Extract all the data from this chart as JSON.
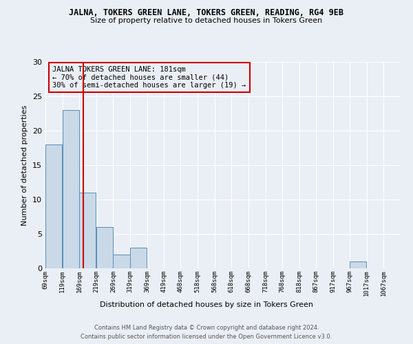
{
  "title": "JALNA, TOKERS GREEN LANE, TOKERS GREEN, READING, RG4 9EB",
  "subtitle": "Size of property relative to detached houses in Tokers Green",
  "xlabel": "Distribution of detached houses by size in Tokers Green",
  "ylabel": "Number of detached properties",
  "bin_edges": [
    69,
    119,
    169,
    219,
    269,
    319,
    369,
    419,
    468,
    518,
    568,
    618,
    668,
    718,
    768,
    818,
    867,
    917,
    967,
    1017,
    1067
  ],
  "bin_labels": [
    "69sqm",
    "119sqm",
    "169sqm",
    "219sqm",
    "269sqm",
    "319sqm",
    "369sqm",
    "419sqm",
    "468sqm",
    "518sqm",
    "568sqm",
    "618sqm",
    "668sqm",
    "718sqm",
    "768sqm",
    "818sqm",
    "867sqm",
    "917sqm",
    "967sqm",
    "1017sqm",
    "1067sqm"
  ],
  "bar_heights": [
    18,
    23,
    11,
    6,
    2,
    3,
    0,
    0,
    0,
    0,
    0,
    0,
    0,
    0,
    0,
    0,
    0,
    0,
    1,
    0,
    0
  ],
  "bar_color": "#c9d9e8",
  "bar_edgecolor": "#5a8db5",
  "vline_x": 181,
  "vline_color": "#cc0000",
  "ylim": [
    0,
    30
  ],
  "yticks": [
    0,
    5,
    10,
    15,
    20,
    25,
    30
  ],
  "annotation_box_text": "JALNA TOKERS GREEN LANE: 181sqm\n← 70% of detached houses are smaller (44)\n30% of semi-detached houses are larger (19) →",
  "annotation_box_color": "#cc0000",
  "footer1": "Contains HM Land Registry data © Crown copyright and database right 2024.",
  "footer2": "Contains public sector information licensed under the Open Government Licence v3.0.",
  "bg_color": "#eaeff5",
  "grid_color": "#ffffff"
}
